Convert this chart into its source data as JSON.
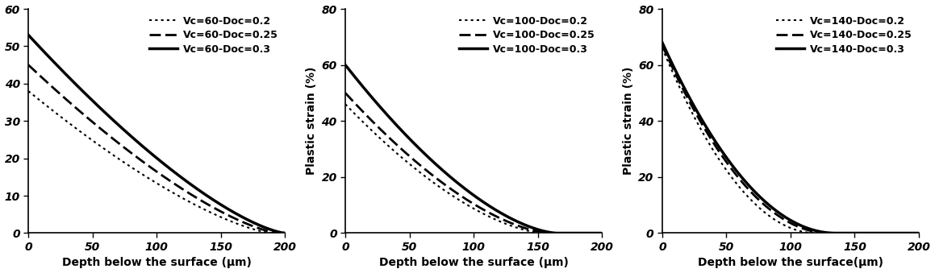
{
  "subplots": [
    {
      "vc": 60,
      "ylim": [
        0,
        60
      ],
      "yticks": [
        0,
        10,
        20,
        30,
        40,
        50,
        60
      ],
      "xlim": [
        0,
        200
      ],
      "xticks": [
        0,
        50,
        100,
        150,
        200
      ],
      "ylabel": "",
      "xlabel": "Depth below the surface (μm)",
      "curves": [
        {
          "label": "Vc=60-Doc=0.2",
          "style": "dotted",
          "y0": 38,
          "x_end": 190,
          "n": 1.4
        },
        {
          "label": "Vc=60-Doc=0.25",
          "style": "dashed",
          "y0": 45,
          "x_end": 195,
          "n": 1.4
        },
        {
          "label": "Vc=60-Doc=0.3",
          "style": "solid",
          "y0": 53,
          "x_end": 200,
          "n": 1.4
        }
      ]
    },
    {
      "vc": 100,
      "ylim": [
        0,
        80
      ],
      "yticks": [
        0,
        20,
        40,
        60,
        80
      ],
      "xlim": [
        0,
        200
      ],
      "xticks": [
        0,
        50,
        100,
        150,
        200
      ],
      "ylabel": "Plastic strain (%)",
      "xlabel": "Depth below the surface (μm)",
      "curves": [
        {
          "label": "Vc=100-Doc=0.2",
          "style": "dotted",
          "y0": 46,
          "x_end": 155,
          "n": 1.6
        },
        {
          "label": "Vc=100-Doc=0.25",
          "style": "dashed",
          "y0": 50,
          "x_end": 160,
          "n": 1.6
        },
        {
          "label": "Vc=100-Doc=0.3",
          "style": "solid",
          "y0": 60,
          "x_end": 165,
          "n": 1.6
        }
      ]
    },
    {
      "vc": 140,
      "ylim": [
        0,
        80
      ],
      "yticks": [
        0,
        20,
        40,
        60,
        80
      ],
      "xlim": [
        0,
        200
      ],
      "xticks": [
        0,
        50,
        100,
        150,
        200
      ],
      "ylabel": "Plastic strain (%)",
      "xlabel": "Depth below the surface(μm)",
      "curves": [
        {
          "label": "Vc=140-Doc=0.2",
          "style": "dotted",
          "y0": 66,
          "x_end": 120,
          "n": 2.0
        },
        {
          "label": "Vc=140-Doc=0.25",
          "style": "dashed",
          "y0": 67,
          "x_end": 130,
          "n": 2.0
        },
        {
          "label": "Vc=140-Doc=0.3",
          "style": "solid",
          "y0": 68,
          "x_end": 135,
          "n": 2.0
        }
      ]
    }
  ],
  "line_color": "#000000",
  "lw_dotted": 1.5,
  "lw_dashed": 2.0,
  "lw_solid": 2.5,
  "legend_fontsize": 9,
  "tick_fontsize": 10,
  "label_fontsize": 10
}
